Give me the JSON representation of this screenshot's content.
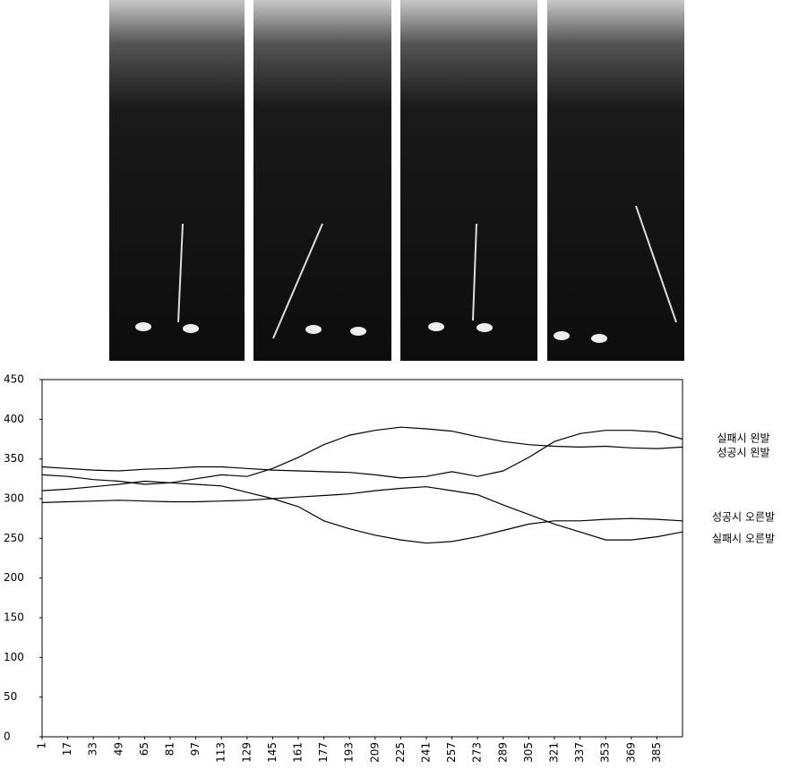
{
  "chart_data": {
    "type": "line",
    "x": [
      1,
      17,
      33,
      49,
      65,
      81,
      97,
      113,
      129,
      145,
      161,
      177,
      193,
      209,
      225,
      241,
      257,
      273,
      289,
      305,
      321,
      337,
      353,
      369,
      385,
      401
    ],
    "series": [
      {
        "name": "실패시 왼발",
        "color": "#000000",
        "values": [
          340,
          338,
          336,
          335,
          337,
          338,
          340,
          340,
          338,
          336,
          335,
          334,
          333,
          330,
          326,
          328,
          334,
          328,
          335,
          352,
          372,
          382,
          386,
          386,
          384,
          375
        ]
      },
      {
        "name": "성공시 왼발",
        "color": "#000000",
        "values": [
          330,
          328,
          324,
          322,
          318,
          320,
          325,
          330,
          328,
          338,
          352,
          368,
          380,
          386,
          390,
          388,
          385,
          378,
          372,
          368,
          366,
          365,
          366,
          364,
          363,
          365
        ]
      },
      {
        "name": "성공시 오른발",
        "color": "#000000",
        "values": [
          310,
          312,
          315,
          318,
          322,
          320,
          318,
          316,
          308,
          300,
          290,
          272,
          262,
          254,
          248,
          244,
          246,
          252,
          260,
          268,
          272,
          272,
          274,
          275,
          274,
          272
        ]
      },
      {
        "name": "실패시 오른발",
        "color": "#000000",
        "values": [
          295,
          296,
          297,
          298,
          297,
          296,
          296,
          297,
          298,
          300,
          302,
          304,
          306,
          310,
          313,
          315,
          310,
          305,
          292,
          280,
          268,
          258,
          248,
          248,
          252,
          258
        ]
      }
    ],
    "xlim": [
      1,
      401
    ],
    "xticks": [
      1,
      17,
      33,
      49,
      65,
      81,
      97,
      113,
      129,
      145,
      161,
      177,
      193,
      209,
      225,
      241,
      257,
      273,
      289,
      305,
      321,
      337,
      353,
      369,
      385
    ],
    "ylim": [
      0,
      450
    ],
    "yticks": [
      0,
      50,
      100,
      150,
      200,
      250,
      300,
      350,
      400,
      450
    ],
    "grid": false
  }
}
